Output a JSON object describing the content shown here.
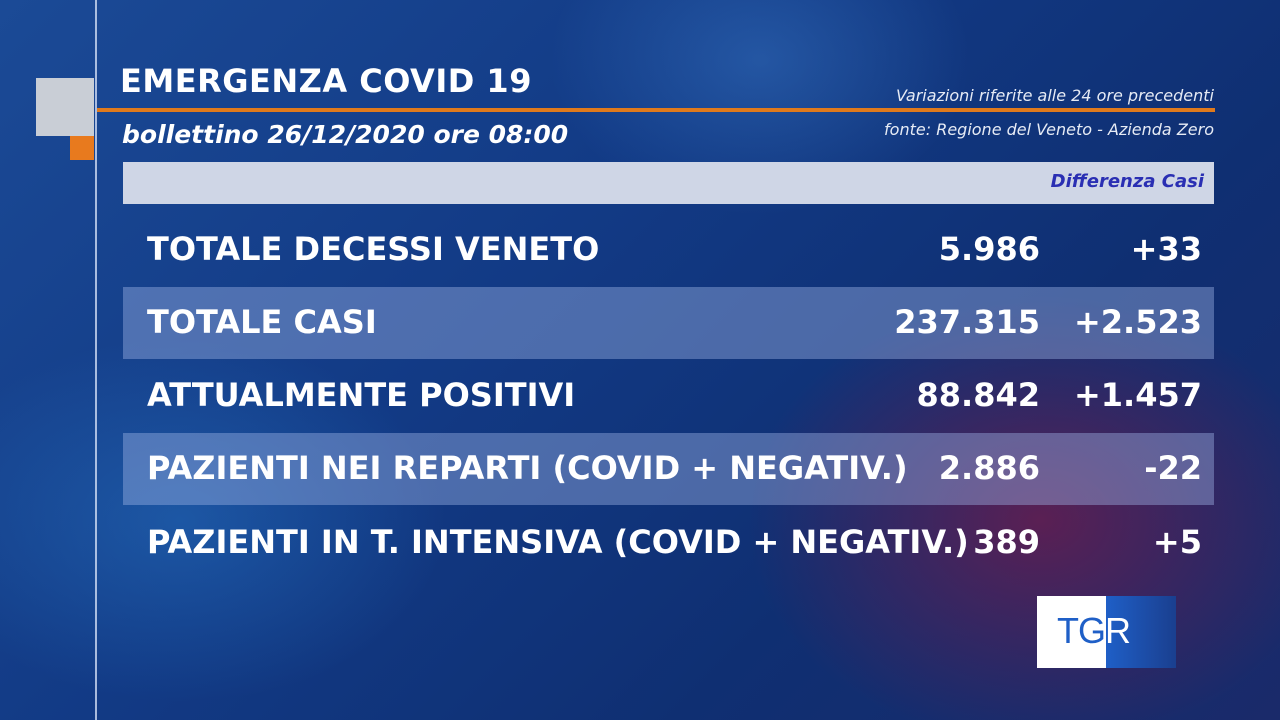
{
  "header": {
    "title": "EMERGENZA COVID 19",
    "bulletin": "bollettino 26/12/2020 ore 08:00",
    "note_variations": "Variazioni riferite alle 24 ore precedenti",
    "note_source": "fonte: Regione del Veneto - Azienda Zero"
  },
  "table": {
    "difference_label": "Differenza Casi",
    "rows": [
      {
        "label": "TOTALE DECESSI VENETO",
        "value": "5.986",
        "delta": "+33"
      },
      {
        "label": "TOTALE CASI",
        "value": "237.315",
        "delta": "+2.523"
      },
      {
        "label": "ATTUALMENTE POSITIVI",
        "value": "88.842",
        "delta": "+1.457"
      },
      {
        "label": "PAZIENTI NEI REPARTI (COVID + NEGATIV.)",
        "value": "2.886",
        "delta": "-22"
      },
      {
        "label": "PAZIENTI IN T. INTENSIVA (COVID + NEGATIV.)",
        "value": "389",
        "delta": "+5"
      }
    ]
  },
  "logo": {
    "tg": "TG",
    "r": "R"
  },
  "colors": {
    "accent_orange": "#e07a1c",
    "background_blue": "#123a85",
    "header_bar": "#cfd6e6",
    "difference_text": "#2a2fb3"
  }
}
